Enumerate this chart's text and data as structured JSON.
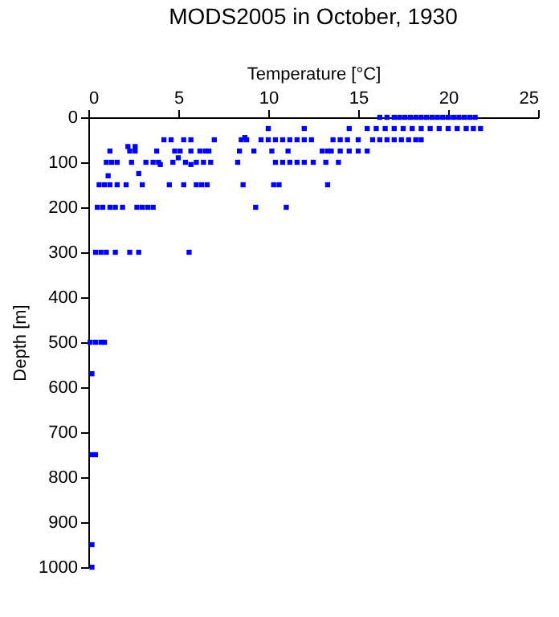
{
  "chart_data": {
    "type": "scatter",
    "title": "MODS2005 in October, 1930",
    "xlabel": "Temperature [°C]",
    "ylabel": "Depth [m]",
    "x": [
      16.2,
      16.6,
      17.0,
      17.3,
      17.6,
      17.9,
      18.2,
      18.5,
      18.8,
      19.1,
      19.4,
      19.7,
      20.0,
      20.3,
      20.6,
      20.9,
      21.2,
      21.5,
      10.0,
      12.0,
      14.5,
      15.5,
      16.0,
      16.5,
      17.0,
      17.5,
      18.0,
      18.5,
      19.0,
      19.5,
      20.0,
      20.5,
      21.0,
      21.4,
      21.8,
      4.2,
      4.6,
      5.3,
      5.7,
      7.0,
      8.5,
      8.8,
      9.6,
      10.0,
      10.4,
      10.8,
      11.2,
      11.6,
      12.0,
      12.4,
      13.6,
      14.0,
      14.4,
      15.0,
      15.8,
      16.2,
      16.6,
      17.0,
      17.4,
      17.8,
      18.2,
      18.5,
      2.2,
      2.6,
      8.7,
      1.2,
      2.3,
      2.6,
      3.8,
      4.8,
      5.1,
      5.7,
      6.2,
      6.5,
      6.7,
      8.4,
      9.2,
      10.2,
      11.1,
      13.0,
      13.3,
      13.5,
      14.0,
      14.5,
      15.0,
      15.5,
      5.0,
      1.0,
      1.3,
      1.6,
      2.4,
      3.2,
      3.6,
      3.9,
      4.7,
      5.4,
      6.0,
      6.4,
      6.8,
      8.3,
      10.4,
      10.8,
      11.2,
      11.6,
      12.0,
      12.5,
      13.2,
      13.9,
      4.0,
      5.7,
      1.1,
      2.8,
      0.6,
      0.9,
      1.2,
      1.6,
      2.1,
      3.0,
      4.5,
      5.3,
      6.0,
      6.3,
      6.6,
      8.6,
      10.3,
      10.6,
      13.3,
      0.5,
      0.8,
      1.2,
      1.5,
      1.9,
      2.7,
      3.0,
      3.3,
      3.6,
      9.3,
      11.0,
      0.4,
      0.7,
      1.0,
      1.5,
      2.3,
      2.8,
      5.6,
      0.1,
      0.4,
      0.7,
      0.9,
      0.2,
      0.2,
      0.4,
      0.2,
      0.2
    ],
    "series": [
      {
        "color": "#0000ff",
        "values": [
          0,
          0,
          0,
          0,
          0,
          0,
          0,
          0,
          0,
          0,
          0,
          0,
          0,
          0,
          0,
          0,
          0,
          0,
          25,
          25,
          25,
          25,
          25,
          25,
          25,
          25,
          25,
          25,
          25,
          25,
          25,
          25,
          25,
          25,
          25,
          50,
          50,
          50,
          50,
          50,
          50,
          50,
          50,
          50,
          50,
          50,
          50,
          50,
          50,
          50,
          50,
          50,
          50,
          50,
          50,
          50,
          50,
          50,
          50,
          50,
          50,
          50,
          65,
          65,
          45,
          75,
          75,
          75,
          75,
          75,
          75,
          75,
          75,
          75,
          75,
          75,
          75,
          75,
          75,
          75,
          75,
          75,
          75,
          75,
          75,
          75,
          90,
          100,
          100,
          100,
          100,
          100,
          100,
          100,
          100,
          100,
          100,
          100,
          100,
          100,
          100,
          100,
          100,
          100,
          100,
          100,
          100,
          100,
          105,
          105,
          130,
          125,
          150,
          150,
          150,
          150,
          150,
          150,
          150,
          150,
          150,
          150,
          150,
          150,
          150,
          150,
          150,
          200,
          200,
          200,
          200,
          200,
          200,
          200,
          200,
          200,
          200,
          200,
          300,
          300,
          300,
          300,
          300,
          300,
          300,
          500,
          500,
          500,
          500,
          570,
          750,
          750,
          950,
          1000
        ]
      }
    ],
    "xlim": [
      0,
      25
    ],
    "xticks": [
      0,
      5,
      10,
      15,
      20,
      25
    ],
    "ylim": [
      1000,
      0
    ],
    "yticks": [
      0,
      100,
      200,
      300,
      400,
      500,
      600,
      700,
      800,
      900,
      1000
    ],
    "marker": "square",
    "grid": false,
    "legend": false
  }
}
